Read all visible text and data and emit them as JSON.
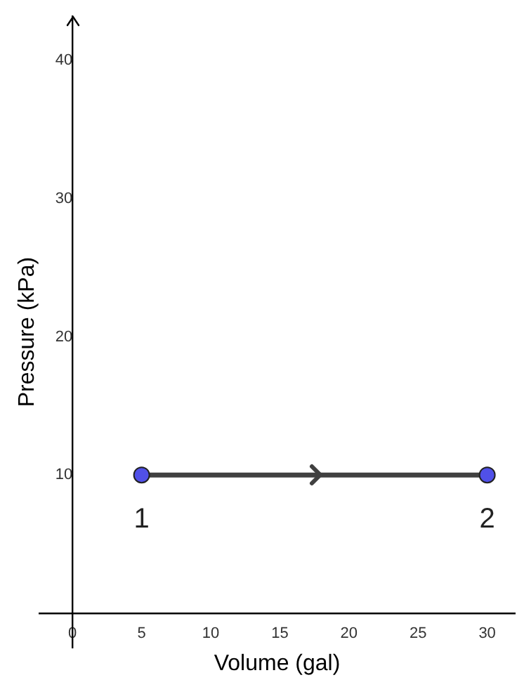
{
  "chart_data": {
    "type": "line",
    "xlabel": "Volume (gal)",
    "ylabel": "Pressure (kPa)",
    "x": [
      5,
      30
    ],
    "series": [
      {
        "color": "#404040",
        "colors": [
          "#5050e8",
          "#5050e8"
        ],
        "values": [
          10,
          10
        ]
      }
    ],
    "xlim": [
      -2.4,
      32
    ],
    "ylim": [
      -2.5,
      43.2
    ],
    "xticks": [
      0,
      5,
      10,
      15,
      20,
      25,
      30
    ],
    "yticks": [
      10,
      20,
      30,
      40
    ],
    "marker": "circle",
    "line_style": "solid",
    "grid": false,
    "legend": false,
    "annotations": [
      {
        "text": "1",
        "x": 5,
        "y": 10
      },
      {
        "text": "2",
        "x": 30,
        "y": 10
      }
    ]
  }
}
